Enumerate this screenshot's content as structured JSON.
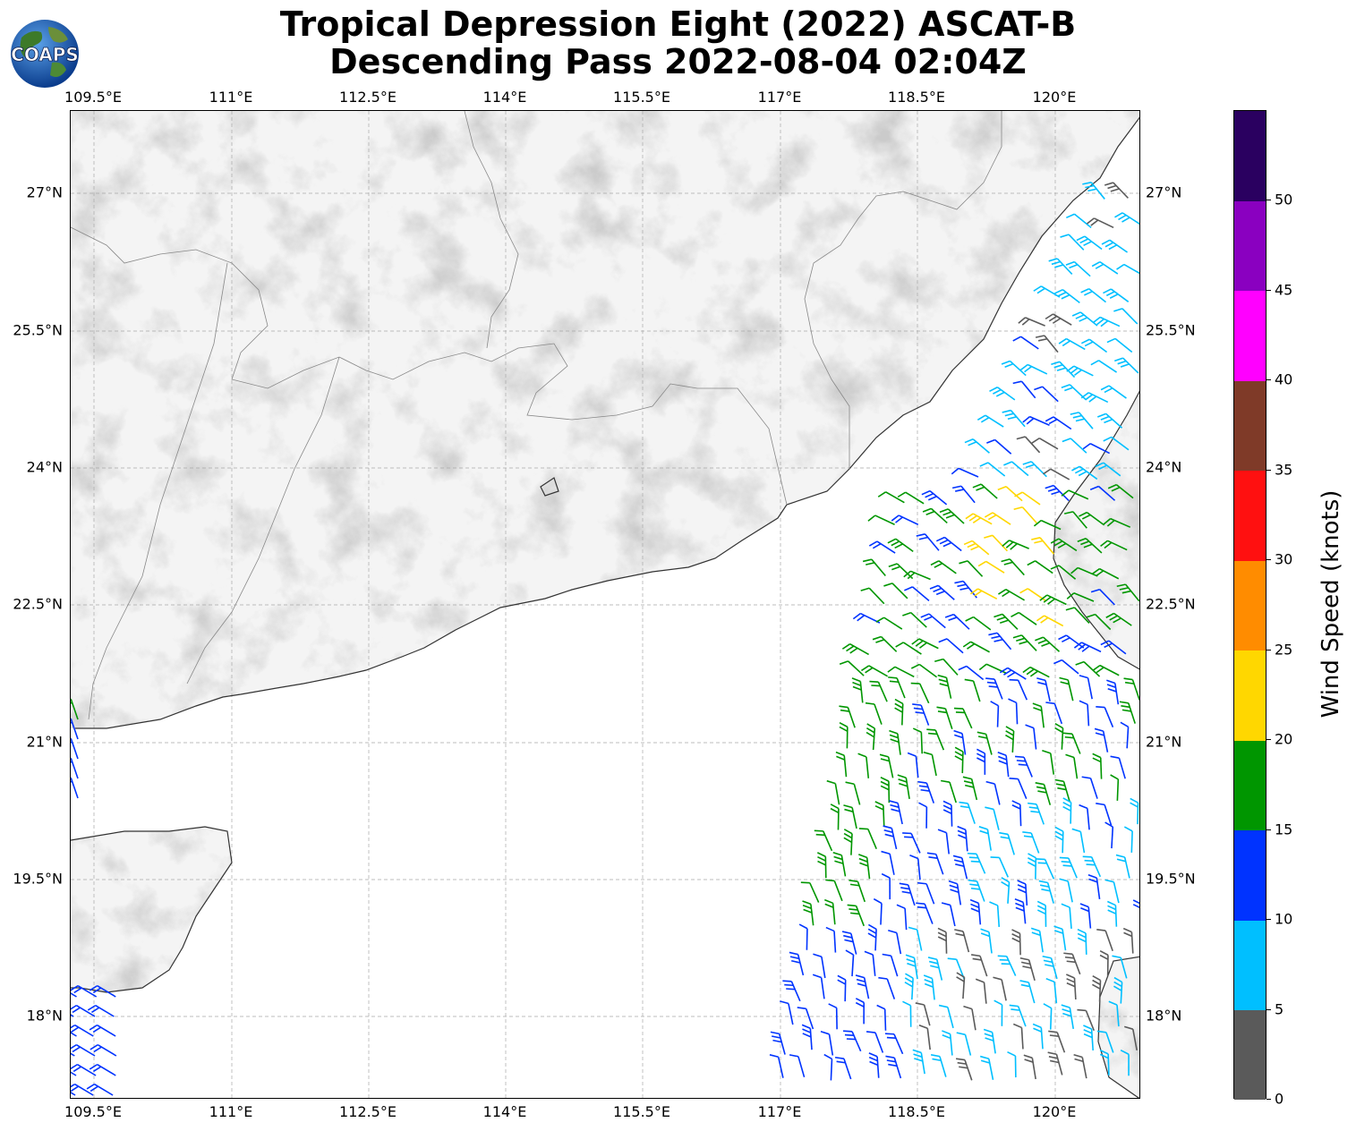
{
  "title": {
    "line1": "Tropical Depression Eight (2022) ASCAT-B",
    "line2": "Descending Pass 2022-08-04 02:04Z"
  },
  "logo": {
    "text": "COAPS",
    "icon": "globe-icon"
  },
  "axes": {
    "lon_labels": [
      "109.5°E",
      "111°E",
      "112.5°E",
      "114°E",
      "115.5°E",
      "117°E",
      "118.5°E",
      "120°E"
    ],
    "lat_labels": [
      "27°N",
      "25.5°N",
      "24°N",
      "22.5°N",
      "21°N",
      "19.5°N",
      "18°N"
    ],
    "lon_range": [
      109.5,
      121.2
    ],
    "lat_range": [
      17.1,
      27.9
    ]
  },
  "colorbar": {
    "label": "Wind Speed (knots)",
    "ticks": [
      "0",
      "5",
      "10",
      "15",
      "20",
      "25",
      "30",
      "35",
      "40",
      "45",
      "50"
    ],
    "bins": [
      {
        "min": 0,
        "max": 5,
        "color": "#5a5a5a"
      },
      {
        "min": 5,
        "max": 10,
        "color": "#00bfff"
      },
      {
        "min": 10,
        "max": 15,
        "color": "#0033ff"
      },
      {
        "min": 15,
        "max": 20,
        "color": "#009600"
      },
      {
        "min": 20,
        "max": 25,
        "color": "#ffd700"
      },
      {
        "min": 25,
        "max": 30,
        "color": "#ff8c00"
      },
      {
        "min": 30,
        "max": 35,
        "color": "#ff1010"
      },
      {
        "min": 35,
        "max": 40,
        "color": "#7f3a28"
      },
      {
        "min": 40,
        "max": 45,
        "color": "#ff00ff"
      },
      {
        "min": 45,
        "max": 50,
        "color": "#8a00c0"
      },
      {
        "min": 50,
        "max": 55,
        "color": "#2a0060"
      }
    ]
  }
}
